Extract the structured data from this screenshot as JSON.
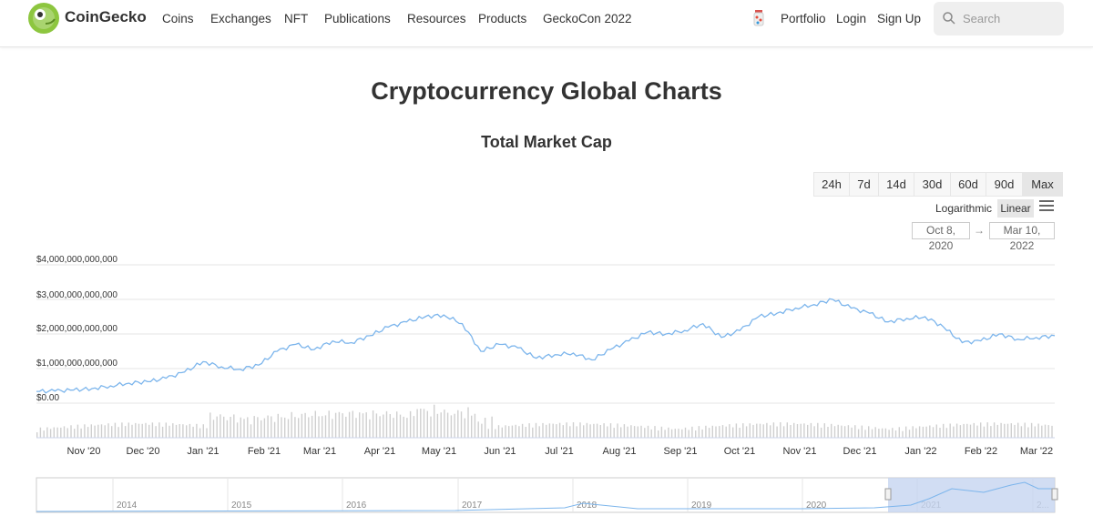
{
  "nav": {
    "brand": "CoinGecko",
    "links": [
      "Coins",
      "Exchanges",
      "NFT",
      "Publications",
      "Resources",
      "Products",
      "GeckoCon 2022"
    ],
    "right": [
      "Portfolio",
      "Login",
      "Sign Up"
    ],
    "search_placeholder": "Search"
  },
  "page": {
    "title": "Cryptocurrency Global Charts",
    "subtitle": "Total Market Cap"
  },
  "controls": {
    "ranges": [
      "24h",
      "7d",
      "14d",
      "30d",
      "60d",
      "90d",
      "Max"
    ],
    "active_range": "Max",
    "scales": [
      "Logarithmic",
      "Linear"
    ],
    "active_scale": "Linear",
    "date_from": "Oct 8, 2020",
    "date_to": "Mar 10, 2022",
    "arrow": "→"
  },
  "colors": {
    "line": "#7cb5ec",
    "volume": "#cccccc",
    "navigator_mask": "#c6d5f0"
  },
  "chart_data": {
    "type": "line",
    "title": "Total Market Cap",
    "yticks": [
      "$4,000,000,000,000",
      "$3,000,000,000,000",
      "$2,000,000,000,000",
      "$1,000,000,000,000",
      "$0.00"
    ],
    "ylim": [
      0,
      4000000000000
    ],
    "xticks": [
      "Nov '20",
      "Dec '20",
      "Jan '21",
      "Feb '21",
      "Mar '21",
      "Apr '21",
      "May '21",
      "Jun '21",
      "Jul '21",
      "Aug '21",
      "Sep '21",
      "Oct '21",
      "Nov '21",
      "Dec '21",
      "Jan '22",
      "Feb '22",
      "Mar '22"
    ],
    "series": [
      {
        "values_trillion": [
          0.34,
          0.35,
          0.38,
          0.42,
          0.5,
          0.58,
          0.62,
          0.72,
          0.9,
          1.2,
          1.05,
          0.98,
          1.1,
          1.5,
          1.7,
          1.55,
          1.8,
          1.75,
          1.95,
          2.2,
          2.35,
          2.5,
          2.55,
          2.3,
          1.5,
          1.7,
          1.6,
          1.3,
          1.4,
          1.45,
          1.25,
          1.55,
          1.8,
          2.05,
          2.0,
          2.1,
          2.3,
          1.9,
          2.1,
          2.5,
          2.6,
          2.75,
          2.85,
          3.0,
          2.75,
          2.6,
          2.35,
          2.45,
          2.5,
          2.2,
          1.75,
          1.8,
          2.0,
          1.85,
          1.9,
          1.95
        ]
      }
    ],
    "volume_bars": "daily trading volume bars (unlabeled)",
    "navigator_years": [
      "2014",
      "2015",
      "2016",
      "2017",
      "2018",
      "2019",
      "2020",
      "2021",
      "2..."
    ]
  }
}
